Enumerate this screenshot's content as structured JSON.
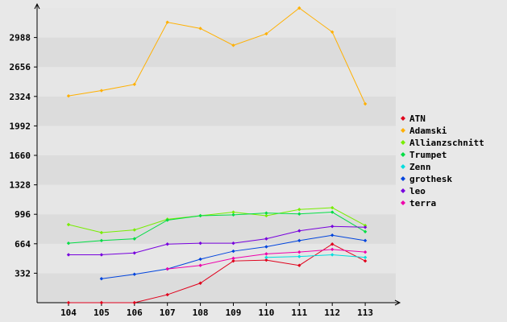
{
  "chart_data": {
    "type": "line",
    "title": "",
    "xlabel": "",
    "ylabel": "",
    "x": [
      "104",
      "105",
      "106",
      "107",
      "108",
      "109",
      "110",
      "111",
      "112",
      "113"
    ],
    "y_ticks": [
      "332",
      "664",
      "996",
      "1328",
      "1660",
      "1992",
      "2324",
      "2656",
      "2988"
    ],
    "ylim": [
      0,
      3320
    ],
    "grid": "horizontal bands",
    "legend_position": "right",
    "series": [
      {
        "name": "ATN",
        "color": "#e0001b",
        "values": [
          0,
          0,
          0,
          90,
          220,
          470,
          480,
          420,
          660,
          470
        ]
      },
      {
        "name": "Adamski",
        "color": "#ffb000",
        "values": [
          2330,
          2390,
          2460,
          3160,
          3090,
          2900,
          3030,
          3320,
          3050,
          2240
        ]
      },
      {
        "name": "Allianzschnitt",
        "color": "#77ee00",
        "values": [
          880,
          790,
          820,
          940,
          980,
          1020,
          980,
          1050,
          1070,
          870
        ]
      },
      {
        "name": "Trumpet",
        "color": "#00dd44",
        "values": [
          670,
          700,
          720,
          930,
          980,
          990,
          1010,
          1000,
          1020,
          800
        ]
      },
      {
        "name": "Zenn",
        "color": "#00dddd",
        "values": [
          null,
          null,
          null,
          null,
          null,
          null,
          510,
          520,
          540,
          510
        ]
      },
      {
        "name": "grothesk",
        "color": "#0044dd",
        "values": [
          null,
          270,
          320,
          380,
          490,
          580,
          630,
          700,
          760,
          700
        ]
      },
      {
        "name": "leo",
        "color": "#7700dd",
        "values": [
          540,
          540,
          560,
          660,
          670,
          670,
          720,
          810,
          860,
          850
        ]
      },
      {
        "name": "terra",
        "color": "#ee00aa",
        "values": [
          null,
          null,
          null,
          380,
          420,
          500,
          550,
          570,
          600,
          570
        ]
      }
    ]
  }
}
